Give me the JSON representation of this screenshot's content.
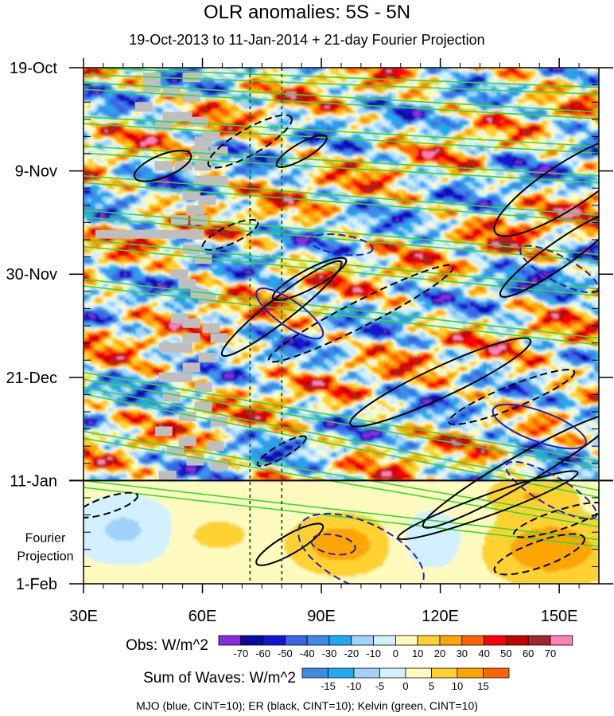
{
  "chart_data": {
    "type": "heatmap",
    "title": "OLR anomalies: 5S - 5N",
    "subtitle": "19-Oct-2013 to 11-Jan-2014 + 21-day Fourier Projection",
    "x_range": [
      30,
      160
    ],
    "x_ticks": [
      {
        "value": 30,
        "label": "30E"
      },
      {
        "value": 60,
        "label": "60E"
      },
      {
        "value": 90,
        "label": "90E"
      },
      {
        "value": 120,
        "label": "120E"
      },
      {
        "value": 150,
        "label": "150E"
      }
    ],
    "time_axis_days": [
      0,
      105
    ],
    "time_ticks": [
      {
        "day": 0,
        "label": "19-Oct"
      },
      {
        "day": 21,
        "label": "9-Nov"
      },
      {
        "day": 42,
        "label": "30-Nov"
      },
      {
        "day": 63,
        "label": "21-Dec"
      },
      {
        "day": 84,
        "label": "11-Jan"
      },
      {
        "day": 105,
        "label": "1-Feb"
      }
    ],
    "projection_start_day": 84,
    "projection_label": [
      "Fourier",
      "Projection"
    ],
    "reference_longitudes": [
      72,
      80
    ],
    "obs_colorbar": {
      "label": "Obs: W/m^2",
      "levels": [
        "-70",
        "-60",
        "-50",
        "-40",
        "-30",
        "-20",
        "-10",
        "0",
        "10",
        "20",
        "30",
        "40",
        "50",
        "60",
        "70"
      ],
      "colors": [
        "#8a2be2",
        "#0a0aa0",
        "#1414d2",
        "#3c64e6",
        "#3c8ce6",
        "#1eaaf0",
        "#a0d2fa",
        "#d2f0ff",
        "#fffbbe",
        "#ffd232",
        "#ffa500",
        "#ff6400",
        "#ff0000",
        "#c80000",
        "#a02828",
        "#ff82b4"
      ]
    },
    "waves_colorbar": {
      "label": "Sum of Waves: W/m^2",
      "levels": [
        "-15",
        "-10",
        "-5",
        "0",
        "5",
        "10",
        "15"
      ],
      "colors": [
        "#3c8ce6",
        "#1eaaf0",
        "#a0d2fa",
        "#d2f0ff",
        "#fffbbe",
        "#ffd232",
        "#ffa500",
        "#ff6400"
      ]
    },
    "missing_color": "#bebebe",
    "wave_contours": [
      {
        "name": "MJO",
        "color": "#1e1ec8",
        "cint": 10
      },
      {
        "name": "ER",
        "color": "#000000",
        "cint": 10
      },
      {
        "name": "Kelvin",
        "color": "#32dc32",
        "cint": 10
      }
    ],
    "footer": "MJO (blue, CINT=10); ER (black, CINT=10); Kelvin (green, CINT=10)"
  }
}
